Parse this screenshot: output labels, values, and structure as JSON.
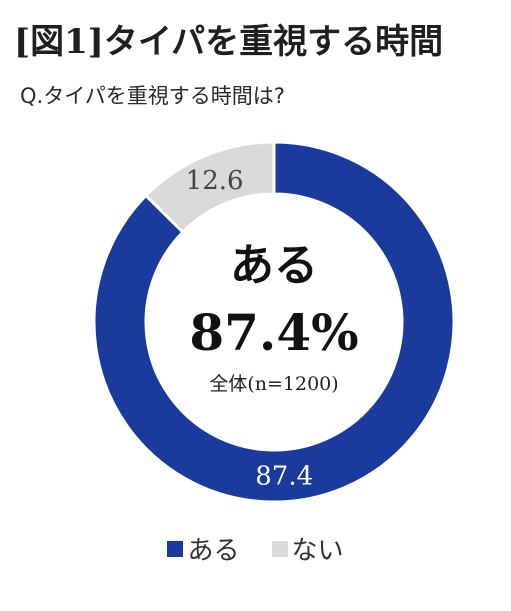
{
  "title": "[図1]タイパを重視する時間",
  "question": "Q.タイパを重視する時間は?",
  "center": {
    "label": "ある",
    "value": "87.4%",
    "note": "全体(n=1200)"
  },
  "colors": {
    "ある": "#1a3a9c",
    "ない": "#d9d9d9"
  },
  "chart_data": {
    "type": "pie",
    "donut": true,
    "categories": [
      "ある",
      "ない"
    ],
    "values": [
      87.4,
      12.6
    ],
    "title": "[図1]タイパを重視する時間",
    "legend_position": "bottom"
  }
}
